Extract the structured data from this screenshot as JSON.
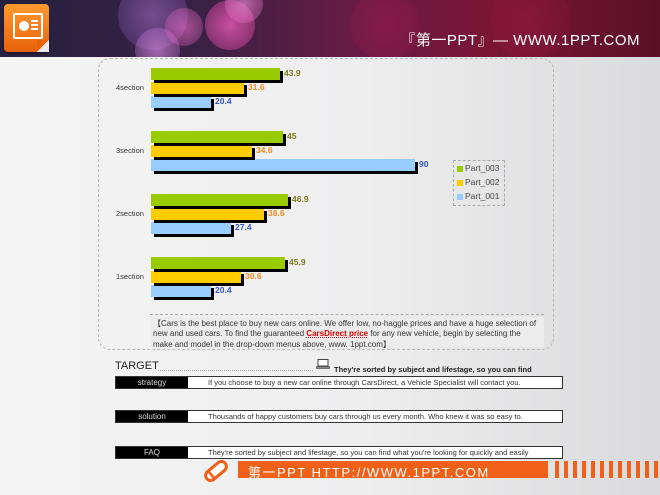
{
  "header": {
    "title": "『第一PPT』— WWW.1PPT.COM",
    "logo_icon": "powerpoint-icon"
  },
  "colors": {
    "part_003": "#99cc00",
    "part_002": "#ffcc00",
    "part_001": "#99ccff",
    "val_003": "#7a7a1a",
    "val_002": "#f08c1e",
    "val_001": "#3355cc",
    "footer": "#f06018"
  },
  "chart_data": {
    "type": "bar",
    "orientation": "horizontal",
    "title": "",
    "xlabel": "",
    "ylabel": "",
    "categories": [
      "4section",
      "3section",
      "2section",
      "1section"
    ],
    "series": [
      {
        "name": "Part_003",
        "values": [
          43.9,
          45,
          46.9,
          45.9
        ]
      },
      {
        "name": "Part_002",
        "values": [
          31.6,
          34.6,
          38.6,
          30.6
        ]
      },
      {
        "name": "Part_001",
        "values": [
          20.4,
          90,
          27.4,
          20.4
        ]
      }
    ],
    "xlim": [
      0,
      90
    ],
    "grid": false,
    "legend_position": "right",
    "data_labels": true
  },
  "legend": {
    "items": [
      {
        "label": "Part_003"
      },
      {
        "label": "Part_002"
      },
      {
        "label": "Part_001"
      }
    ]
  },
  "note": {
    "before": "【Cars is the best place to buy new cars online. We offer low, no-haggle prices and have a huge selection of new and used cars. To find the guaranteed ",
    "link": "CarsDirect price",
    "after": " for any new vehicle, begin by selecting the make and model in the drop-down menus above, www. 1ppt.com】"
  },
  "target": {
    "title": "TARGET",
    "note": "They're sorted by subject and lifestage, so you can find",
    "rows": [
      {
        "label": "strategy",
        "text": "If you choose to buy a new car online through CarsDirect, a Vehicle Specialist will contact you."
      },
      {
        "label": "solution",
        "text": "Thousands of happy customers buy cars through us every month. Who knew it was so easy to."
      },
      {
        "label": "FAQ",
        "text": "They're sorted by subject and lifestage, so you can find what you're looking for quickly and easily"
      }
    ]
  },
  "footer": {
    "text": "第一PPT HTTP://WWW.1PPT.COM"
  }
}
